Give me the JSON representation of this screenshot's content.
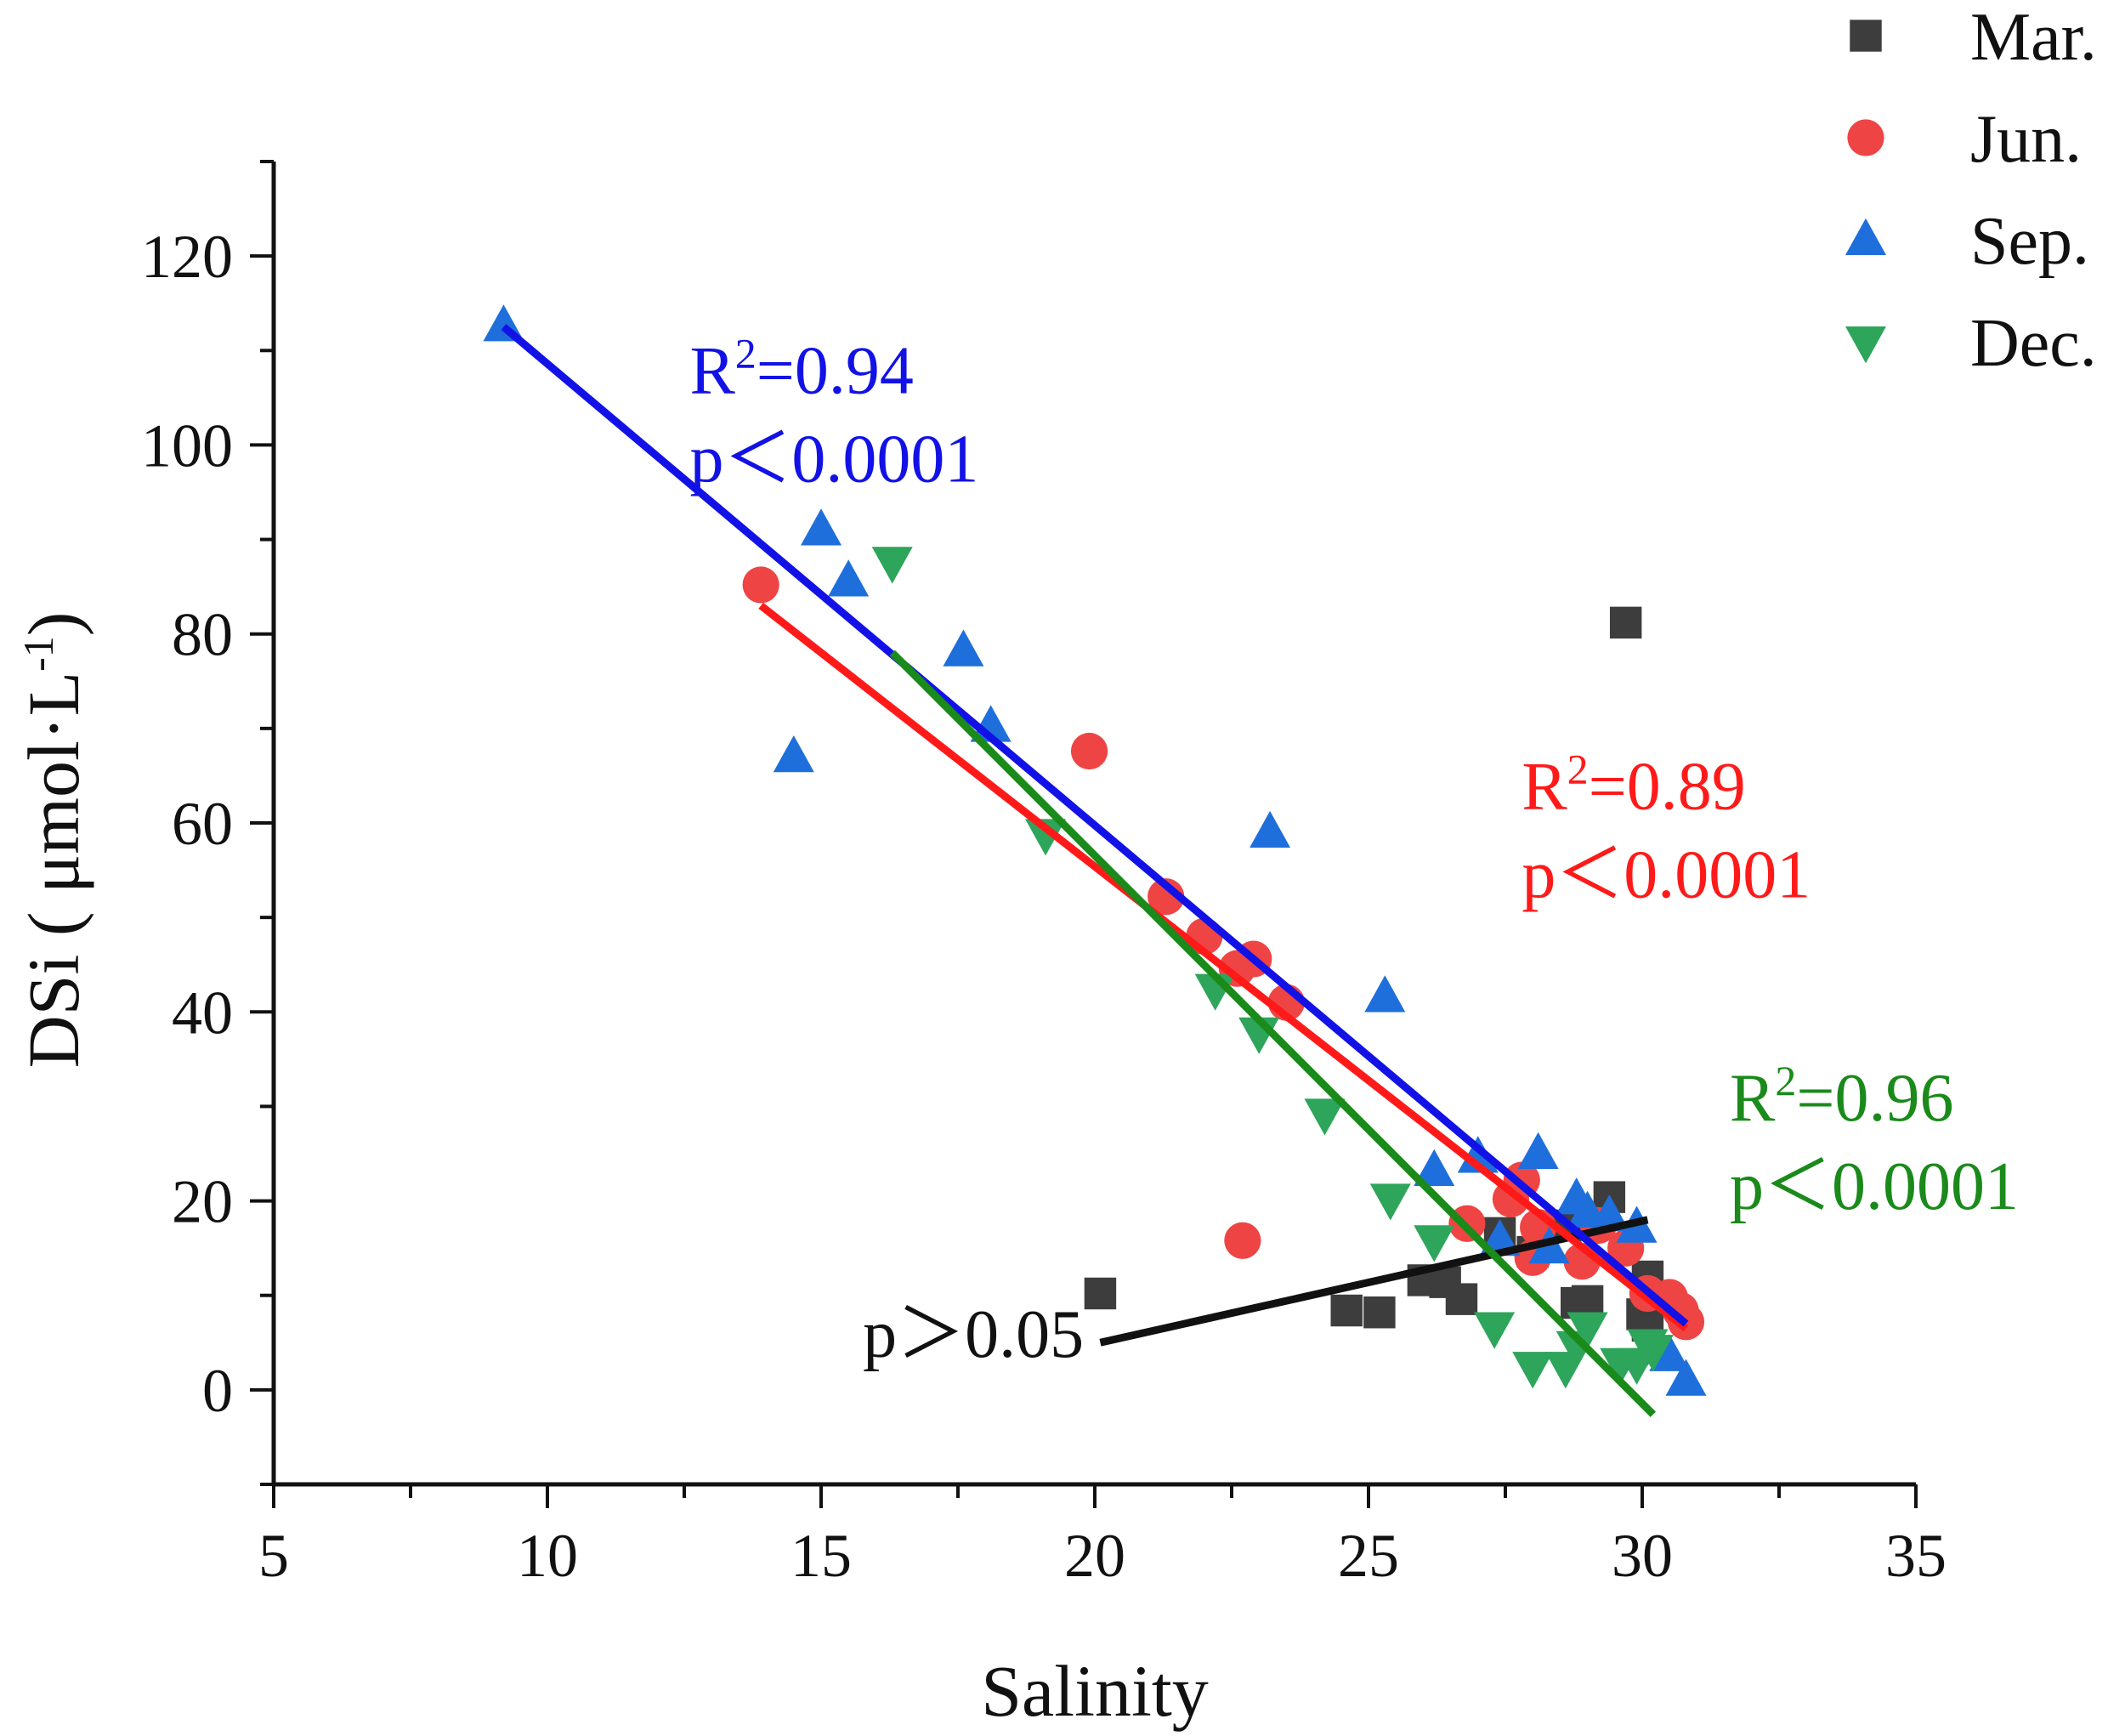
{
  "chart_data": {
    "type": "scatter",
    "xlabel": "Salinity",
    "ylabel": "DSi ( μmol·L",
    "ylabel_sup": "-1",
    "ylabel_close": ")",
    "xlim": [
      5,
      35
    ],
    "ylim": [
      -10,
      130
    ],
    "xticks": [
      5,
      10,
      15,
      20,
      25,
      30,
      35
    ],
    "yticks": [
      0,
      20,
      40,
      60,
      80,
      100,
      120
    ],
    "grid": false,
    "legend_position": "top-right",
    "series": [
      {
        "name": "Mar.",
        "marker": "square",
        "color": "#3d3d3d",
        "points": [
          [
            20.1,
            10.2
          ],
          [
            24.6,
            8.4
          ],
          [
            25.2,
            8.2
          ],
          [
            26.0,
            11.6
          ],
          [
            26.4,
            11.4
          ],
          [
            26.7,
            9.6
          ],
          [
            27.4,
            16.6
          ],
          [
            28.0,
            14.6
          ],
          [
            28.6,
            17.4
          ],
          [
            28.8,
            9.2
          ],
          [
            29.0,
            9.4
          ],
          [
            29.4,
            20.4
          ],
          [
            29.7,
            81.2
          ],
          [
            30.0,
            8.0
          ],
          [
            30.1,
            12.0
          ],
          [
            30.1,
            6.8
          ]
        ]
      },
      {
        "name": "Jun.",
        "marker": "circle",
        "color": "#ef4444",
        "points": [
          [
            13.9,
            85.2
          ],
          [
            19.9,
            67.6
          ],
          [
            21.3,
            52.2
          ],
          [
            22.0,
            48.0
          ],
          [
            22.6,
            44.6
          ],
          [
            22.9,
            45.6
          ],
          [
            22.7,
            15.8
          ],
          [
            23.5,
            41.0
          ],
          [
            26.8,
            17.6
          ],
          [
            27.6,
            20.2
          ],
          [
            27.8,
            22.2
          ],
          [
            28.0,
            14.0
          ],
          [
            28.1,
            17.2
          ],
          [
            28.9,
            13.6
          ],
          [
            29.2,
            17.4
          ],
          [
            29.7,
            15.0
          ],
          [
            30.1,
            10.2
          ],
          [
            30.5,
            9.8
          ],
          [
            30.7,
            8.4
          ],
          [
            30.8,
            7.2
          ]
        ]
      },
      {
        "name": "Sep.",
        "marker": "triangle-up",
        "color": "#1e6fdc",
        "points": [
          [
            9.2,
            112.6
          ],
          [
            14.5,
            67.0
          ],
          [
            15.0,
            91.0
          ],
          [
            15.5,
            85.6
          ],
          [
            17.6,
            78.2
          ],
          [
            18.1,
            70.2
          ],
          [
            23.2,
            59.0
          ],
          [
            25.3,
            41.6
          ],
          [
            26.2,
            23.2
          ],
          [
            27.0,
            24.6
          ],
          [
            27.4,
            15.8
          ],
          [
            28.1,
            25.0
          ],
          [
            28.3,
            15.0
          ],
          [
            28.8,
            20.2
          ],
          [
            29.0,
            18.8
          ],
          [
            29.4,
            18.4
          ],
          [
            29.9,
            17.2
          ],
          [
            30.5,
            3.6
          ],
          [
            30.8,
            1.0
          ]
        ]
      },
      {
        "name": "Dec.",
        "marker": "triangle-down",
        "color": "#2da55a",
        "points": [
          [
            16.3,
            87.6
          ],
          [
            19.1,
            58.8
          ],
          [
            22.2,
            42.4
          ],
          [
            23.0,
            37.8
          ],
          [
            24.2,
            29.2
          ],
          [
            25.4,
            20.2
          ],
          [
            26.2,
            15.8
          ],
          [
            27.3,
            6.6
          ],
          [
            28.0,
            2.4
          ],
          [
            28.6,
            2.4
          ],
          [
            28.8,
            4.6
          ],
          [
            29.0,
            6.6
          ],
          [
            29.6,
            2.8
          ],
          [
            29.9,
            2.8
          ],
          [
            30.1,
            4.8
          ],
          [
            30.2,
            4.2
          ]
        ]
      }
    ],
    "fits": [
      {
        "series": "Mar.",
        "color": "#111111",
        "x": [
          20.1,
          30.1
        ],
        "y": [
          5.0,
          18.0
        ]
      },
      {
        "series": "Jun.",
        "color": "#ff1a1a",
        "x": [
          13.9,
          30.8
        ],
        "y": [
          83.0,
          6.5
        ]
      },
      {
        "series": "Sep.",
        "color": "#1212e6",
        "x": [
          9.2,
          30.8
        ],
        "y": [
          112.5,
          7.0
        ]
      },
      {
        "series": "Dec.",
        "color": "#1a8a1a",
        "x": [
          16.3,
          30.2
        ],
        "y": [
          78.0,
          -2.6
        ]
      }
    ],
    "annotations": [
      {
        "series": "Sep.",
        "color": "#1212e6",
        "r2": "0.94",
        "p": "p＜0.0001",
        "at": [
          12.6,
          105.5
        ],
        "anchor": "start"
      },
      {
        "series": "Jun.",
        "color": "#ff1a1a",
        "r2": "0.89",
        "p": "p＜0.0001",
        "at": [
          27.8,
          61.5
        ],
        "anchor": "start"
      },
      {
        "series": "Dec.",
        "color": "#1a8a1a",
        "r2": "0.96",
        "p": "p＜0.0001",
        "at": [
          31.6,
          28.5
        ],
        "anchor": "start"
      },
      {
        "series": "Mar.",
        "color": "#111111",
        "r2": "",
        "p": "p＞0.05",
        "at": [
          19.8,
          3.5
        ],
        "anchor": "end"
      }
    ]
  }
}
